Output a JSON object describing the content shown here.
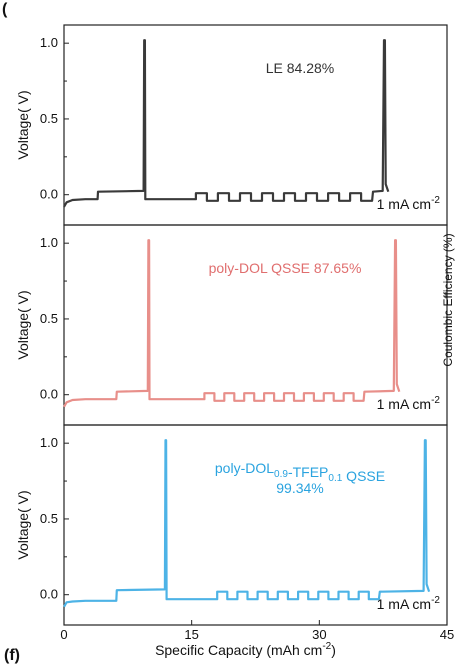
{
  "figure": {
    "panel_label": "(f)",
    "top_corner_mark": "(",
    "right_axis_fragment": "Coulombic Efficiency (%)"
  },
  "chart_data": [
    {
      "type": "line",
      "name": "LE",
      "annotation_lines": [
        "LE  84.28%"
      ],
      "annotation_color": "#333333",
      "color": "#3a3a3a",
      "ylabel": "Voltage( V)",
      "ylim": [
        -0.2,
        1.12
      ],
      "yticks": [
        "0.0",
        "0.5",
        "1.0"
      ],
      "current_label": "1 mA cm",
      "current_label_sup": "-2",
      "segments": {
        "start_dip": -0.08,
        "base_level": -0.03,
        "step_x": 4.0,
        "step_level": 0.02,
        "spike1_x": 9.5,
        "spike_peak": 1.02,
        "after_spike1_level": -0.03,
        "pulses_from": 15.5,
        "pulses_to": 36.2,
        "pulse_count": 8,
        "pulse_high": 0.01,
        "pulse_low": -0.04,
        "rise_x": 36.2,
        "rise_level": 0.02,
        "spike2_x": 37.7,
        "end_level": 0.02
      }
    },
    {
      "type": "line",
      "name": "poly-DOL QSSE",
      "annotation_lines": [
        "poly-DOL QSSE  87.65%"
      ],
      "annotation_color": "#e06e6e",
      "color": "#e88f8a",
      "ylabel": "Voltage( V)",
      "ylim": [
        -0.2,
        1.12
      ],
      "yticks": [
        "0.0",
        "0.5",
        "1.0"
      ],
      "current_label": "1 mA cm",
      "current_label_sup": "-2",
      "segments": {
        "start_dip": -0.08,
        "base_level": -0.03,
        "step_x": 6.2,
        "step_level": 0.02,
        "spike1_x": 10.0,
        "spike_peak": 1.02,
        "after_spike1_level": -0.03,
        "pulses_from": 16.5,
        "pulses_to": 35.2,
        "pulse_count": 8,
        "pulse_high": 0.01,
        "pulse_low": -0.04,
        "rise_x": 35.2,
        "rise_level": 0.02,
        "spike2_x": 39.0,
        "end_level": 0.02
      }
    },
    {
      "type": "line",
      "name": "poly-DOL0.9-TFEP0.1 QSSE",
      "annotation_lines": [
        "poly-DOL0.9-TFEP0.1 QSSE",
        "99.34%"
      ],
      "annotation_color": "#2aa3df",
      "color": "#4db3e6",
      "ylabel": "Voltage( V)",
      "ylim": [
        -0.2,
        1.12
      ],
      "yticks": [
        "0.0",
        "0.5",
        "1.0"
      ],
      "current_label": "1 mA cm",
      "current_label_sup": "-2",
      "segments": {
        "start_dip": -0.08,
        "base_level": -0.04,
        "step_x": 6.2,
        "step_level": 0.03,
        "spike1_x": 12.0,
        "spike_peak": 1.02,
        "after_spike1_level": -0.03,
        "pulses_from": 18.0,
        "pulses_to": 37.0,
        "pulse_count": 8,
        "pulse_high": 0.02,
        "pulse_low": -0.03,
        "rise_x": 37.0,
        "rise_level": 0.02,
        "spike2_x": 42.5,
        "end_level": 0.02
      }
    }
  ],
  "x_axis": {
    "label": "Specific Capacity (mAh cm",
    "label_sup": "-2",
    "label_tail": ")",
    "xlim": [
      0,
      45
    ],
    "ticks": [
      0,
      15,
      30,
      45
    ],
    "tick_labels": [
      "0",
      "15",
      "30",
      "45"
    ]
  }
}
